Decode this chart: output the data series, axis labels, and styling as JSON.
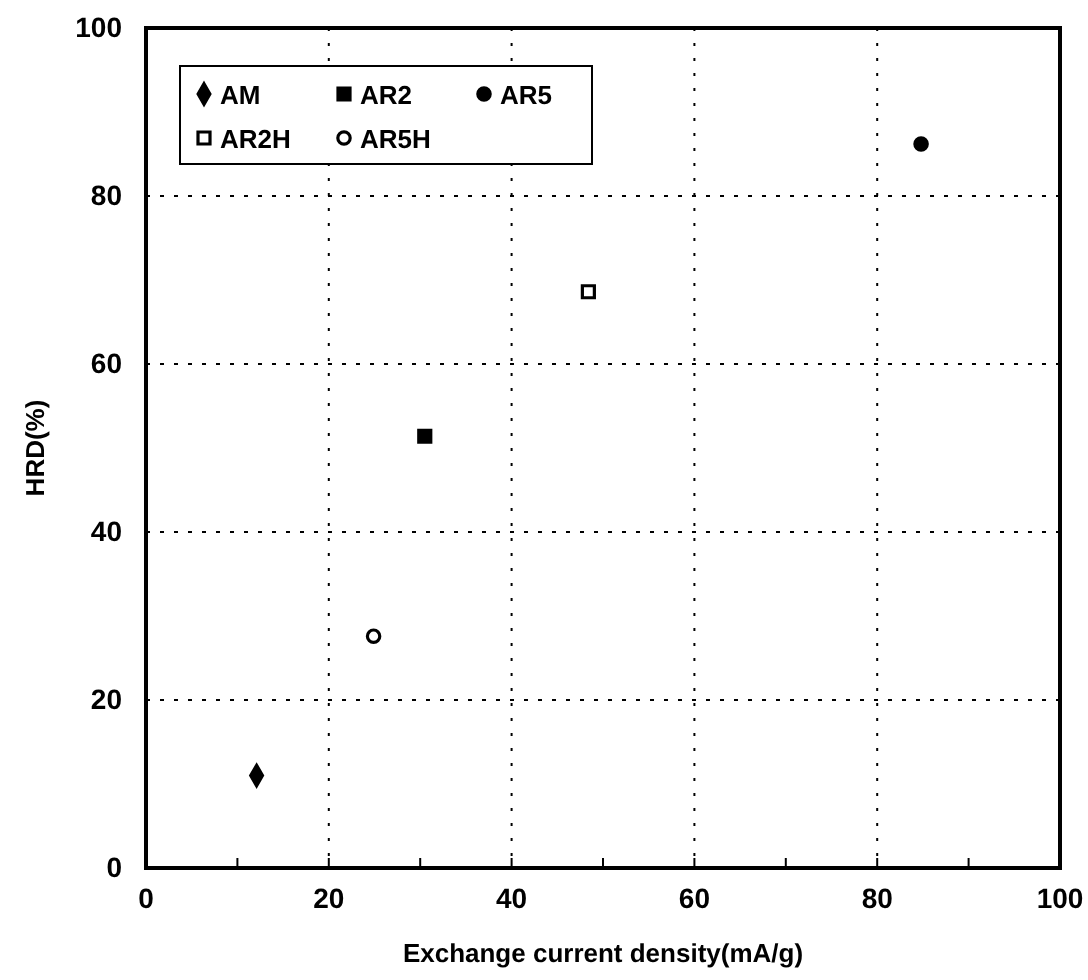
{
  "chart_data": {
    "type": "scatter",
    "xlabel": "Exchange current density(mA/g)",
    "ylabel": "HRD(%)",
    "xlim": [
      0,
      100
    ],
    "ylim": [
      0,
      100
    ],
    "xticks": [
      0,
      {
        "value": 10,
        "label": null
      },
      20,
      {
        "value": 30,
        "label": null
      },
      40,
      {
        "value": 50,
        "label": null
      },
      60,
      {
        "value": 70,
        "label": null
      },
      80,
      {
        "value": 90,
        "label": null
      },
      100
    ],
    "yticks": [
      0,
      20,
      40,
      60,
      80,
      100
    ],
    "grid": true,
    "legend": "top left",
    "series": [
      {
        "name": "AM",
        "color": "#000000",
        "marker": "diamond",
        "x": [
          12.1
        ],
        "values": [
          11
        ]
      },
      {
        "name": "AR2",
        "color": "#000000",
        "marker": "square",
        "x": [
          30.5
        ],
        "values": [
          51.4
        ]
      },
      {
        "name": "AR5",
        "color": "#000000",
        "marker": "circle",
        "x": [
          84.8
        ],
        "values": [
          86.2
        ]
      },
      {
        "name": "AR2H",
        "color": "#ffffff",
        "marker": "square",
        "x": [
          48.4
        ],
        "values": [
          68.6
        ]
      },
      {
        "name": "AR5H",
        "color": "#ffffff",
        "marker": "circle",
        "x": [
          24.9
        ],
        "values": [
          27.6
        ]
      }
    ]
  }
}
